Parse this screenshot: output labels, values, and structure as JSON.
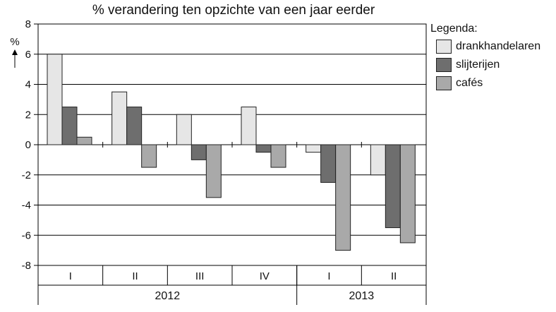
{
  "chart_data": {
    "type": "bar",
    "title": "% verandering ten opzichte van een jaar eerder",
    "ylabel": "%",
    "ylim": [
      -8,
      8
    ],
    "yticks": [
      8,
      6,
      4,
      2,
      0,
      -2,
      -4,
      -6,
      -8
    ],
    "categories": [
      "I",
      "II",
      "III",
      "IV",
      "I",
      "II"
    ],
    "groups": [
      {
        "label": "2012",
        "span": 4
      },
      {
        "label": "2013",
        "span": 2
      }
    ],
    "series": [
      {
        "name": "drankhandelaren",
        "color": "#e6e6e6",
        "values": [
          6,
          3.5,
          2,
          2.5,
          -0.5,
          -2
        ]
      },
      {
        "name": "slijterijen",
        "color": "#6e6e6e",
        "values": [
          2.5,
          2.5,
          -1,
          -0.5,
          -2.5,
          -5.5
        ]
      },
      {
        "name": "cafés",
        "color": "#a9a9a9",
        "values": [
          0.5,
          -1.5,
          -3.5,
          -1.5,
          -7,
          -6.5
        ]
      }
    ],
    "grid": true,
    "legend": {
      "title": "Legenda:",
      "position": "right"
    }
  }
}
